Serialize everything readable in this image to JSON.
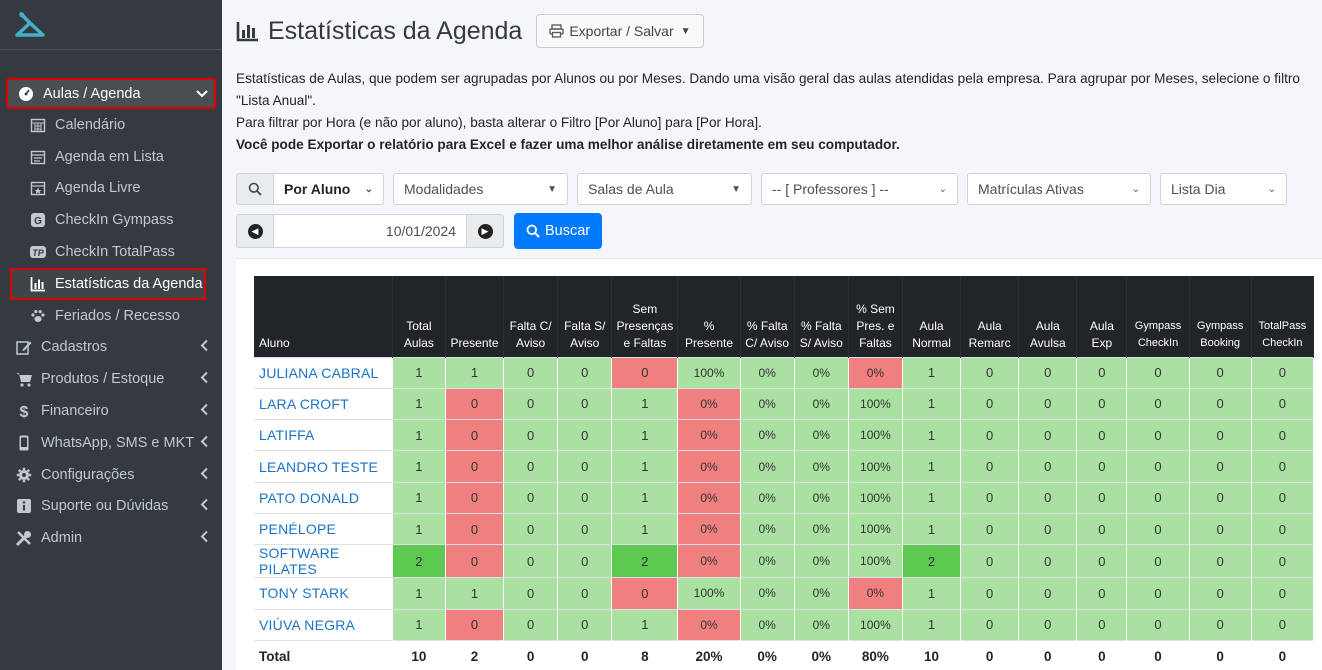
{
  "sidebar": {
    "items": [
      {
        "label": "Aulas / Agenda",
        "icon": "tachometer-icon",
        "active": true
      },
      {
        "label": "Calendário",
        "icon": "calendar-icon"
      },
      {
        "label": "Agenda em Lista",
        "icon": "list-calendar-icon"
      },
      {
        "label": "Agenda Livre",
        "icon": "star-calendar-icon"
      },
      {
        "label": "CheckIn Gympass",
        "icon": "gympass-icon"
      },
      {
        "label": "CheckIn TotalPass",
        "icon": "totalpass-icon"
      },
      {
        "label": "Estatísticas da Agenda",
        "icon": "chart-bar-icon"
      },
      {
        "label": "Feriados / Recesso",
        "icon": "paw-icon"
      },
      {
        "label": "Cadastros",
        "icon": "edit-icon"
      },
      {
        "label": "Produtos / Estoque",
        "icon": "cart-icon"
      },
      {
        "label": "Financeiro",
        "icon": "dollar-icon"
      },
      {
        "label": "WhatsApp, SMS e MKT",
        "icon": "mobile-icon"
      },
      {
        "label": "Configurações",
        "icon": "gear-icon"
      },
      {
        "label": "Suporte ou Dúvidas",
        "icon": "info-icon"
      },
      {
        "label": "Admin",
        "icon": "tools-icon"
      }
    ]
  },
  "header": {
    "title": "Estatísticas da Agenda",
    "export_label": "Exportar / Salvar"
  },
  "description": {
    "line1": "Estatísticas de Aulas, que podem ser agrupadas por Alunos ou por Meses. Dando uma visão geral das aulas atendidas pela empresa. Para agrupar por Meses, selecione o filtro \"Lista Anual\".",
    "line2": "Para filtrar por Hora (e não por aluno), basta alterar o Filtro [Por Aluno] para [Por Hora].",
    "line3": "Você pode Exportar o relatório para Excel e fazer uma melhor análise diretamente em seu computador."
  },
  "filters": {
    "group_by": "Por Aluno",
    "modalidades": "Modalidades",
    "salas": "Salas de Aula",
    "professores": "-- [ Professores ] --",
    "matriculas": "Matrículas Ativas",
    "lista": "Lista Dia",
    "date": "10/01/2024",
    "search_label": "Buscar"
  },
  "table": {
    "headers": [
      "Aluno",
      "Total Aulas",
      "Presente",
      "Falta C/ Aviso",
      "Falta S/ Aviso",
      "Sem Presenças e Faltas",
      "% Presente",
      "% Falta C/ Aviso",
      "% Falta S/ Aviso",
      "% Sem Pres. e Faltas",
      "Aula Normal",
      "Aula Remarc",
      "Aula Avulsa",
      "Aula Exp",
      "Gympass CheckIn",
      "Gympass Booking",
      "TotalPass CheckIn"
    ],
    "rows": [
      {
        "name": "JULIANA CABRAL",
        "values": [
          "1",
          "1",
          "0",
          "0",
          "0",
          "100%",
          "0%",
          "0%",
          "0%",
          "1",
          "0",
          "0",
          "0",
          "0",
          "0",
          "0"
        ]
      },
      {
        "name": "LARA CROFT",
        "values": [
          "1",
          "0",
          "0",
          "0",
          "1",
          "0%",
          "0%",
          "0%",
          "100%",
          "1",
          "0",
          "0",
          "0",
          "0",
          "0",
          "0"
        ]
      },
      {
        "name": "LATIFFA",
        "values": [
          "1",
          "0",
          "0",
          "0",
          "1",
          "0%",
          "0%",
          "0%",
          "100%",
          "1",
          "0",
          "0",
          "0",
          "0",
          "0",
          "0"
        ]
      },
      {
        "name": "LEANDRO TESTE",
        "values": [
          "1",
          "0",
          "0",
          "0",
          "1",
          "0%",
          "0%",
          "0%",
          "100%",
          "1",
          "0",
          "0",
          "0",
          "0",
          "0",
          "0"
        ]
      },
      {
        "name": "PATO DONALD",
        "values": [
          "1",
          "0",
          "0",
          "0",
          "1",
          "0%",
          "0%",
          "0%",
          "100%",
          "1",
          "0",
          "0",
          "0",
          "0",
          "0",
          "0"
        ]
      },
      {
        "name": "PENÉLOPE",
        "values": [
          "1",
          "0",
          "0",
          "0",
          "1",
          "0%",
          "0%",
          "0%",
          "100%",
          "1",
          "0",
          "0",
          "0",
          "0",
          "0",
          "0"
        ]
      },
      {
        "name": "SOFTWARE PILATES",
        "values": [
          "2",
          "0",
          "0",
          "0",
          "2",
          "0%",
          "0%",
          "0%",
          "100%",
          "2",
          "0",
          "0",
          "0",
          "0",
          "0",
          "0"
        ]
      },
      {
        "name": "TONY STARK",
        "values": [
          "1",
          "1",
          "0",
          "0",
          "0",
          "100%",
          "0%",
          "0%",
          "0%",
          "1",
          "0",
          "0",
          "0",
          "0",
          "0",
          "0"
        ]
      },
      {
        "name": "VIÚVA NEGRA",
        "values": [
          "1",
          "0",
          "0",
          "0",
          "1",
          "0%",
          "0%",
          "0%",
          "100%",
          "1",
          "0",
          "0",
          "0",
          "0",
          "0",
          "0"
        ]
      }
    ],
    "total": {
      "label": "Total",
      "values": [
        "10",
        "2",
        "0",
        "0",
        "8",
        "20%",
        "0%",
        "0%",
        "80%",
        "10",
        "0",
        "0",
        "0",
        "0",
        "0",
        "0"
      ]
    }
  },
  "colors": {
    "green": "#a8e1a0",
    "red": "#f08080",
    "dark_green": "#5ec950",
    "primary": "#007bff",
    "sidebar": "#343a40"
  }
}
